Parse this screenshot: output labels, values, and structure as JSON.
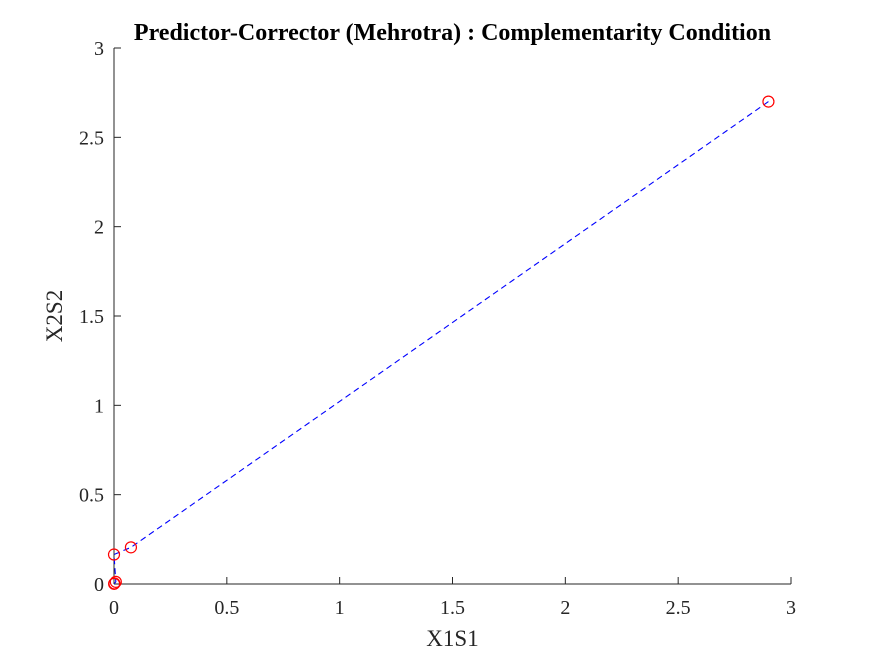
{
  "chart_data": {
    "type": "line",
    "title": "Predictor-Corrector (Mehrotra) : Complementarity Condition",
    "xlabel": "X1S1",
    "ylabel": "X2S2",
    "xlim": [
      0,
      3
    ],
    "ylim": [
      0,
      3
    ],
    "xticks": [
      0,
      0.5,
      1,
      1.5,
      2,
      2.5,
      3
    ],
    "yticks": [
      0,
      0.5,
      1,
      1.5,
      2,
      2.5,
      3
    ],
    "xtick_labels": [
      "0",
      "0.5",
      "1",
      "1.5",
      "2",
      "2.5",
      "3"
    ],
    "ytick_labels": [
      "0",
      "0.5",
      "1",
      "1.5",
      "2",
      "2.5",
      "3"
    ],
    "grid": false,
    "box": false,
    "series": [
      {
        "line_style": "dashed",
        "line_color": "#0000ff",
        "marker": "circle",
        "marker_color": "#ff0000",
        "x": [
          2.9,
          0.075,
          0.0,
          0.008,
          0.002,
          0.0005
        ],
        "y": [
          2.7,
          0.205,
          0.165,
          0.012,
          0.003,
          0.0008
        ]
      }
    ]
  }
}
